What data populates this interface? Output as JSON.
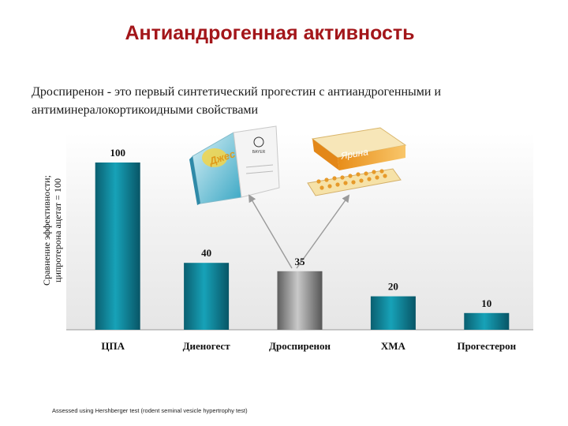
{
  "header": {
    "title": "Антиандрогенная активность",
    "subtitle": "Дроспиренон - это первый синтетический прогестин с антиандрогенными и антиминералокортикоидными свойствами"
  },
  "footnote": "Assessed using Hershberger test (rodent seminal vesicle hypertrophy test)",
  "products": {
    "left_brand": "Джес",
    "left_maker": "BAYER",
    "right_brand": "Ярина"
  },
  "colors": {
    "title": "#a3161a",
    "bar_teal": "#0f8296",
    "bar_highlight": "#8c8c8c"
  },
  "chart_data": {
    "type": "bar",
    "categories": [
      "ЦПА",
      "Диеногест",
      "Дроспиренон",
      "ХМА",
      "Прогестерон"
    ],
    "values": [
      100,
      40,
      35,
      20,
      10
    ],
    "data_labels": [
      "100",
      "40",
      "35",
      "20",
      "10"
    ],
    "highlight_index": 2,
    "ylabel": "Сравнение эффективности; ципротерона ацетат = 100",
    "xlabel": "",
    "ylim": [
      0,
      100
    ],
    "grid": false,
    "legend": "none"
  }
}
